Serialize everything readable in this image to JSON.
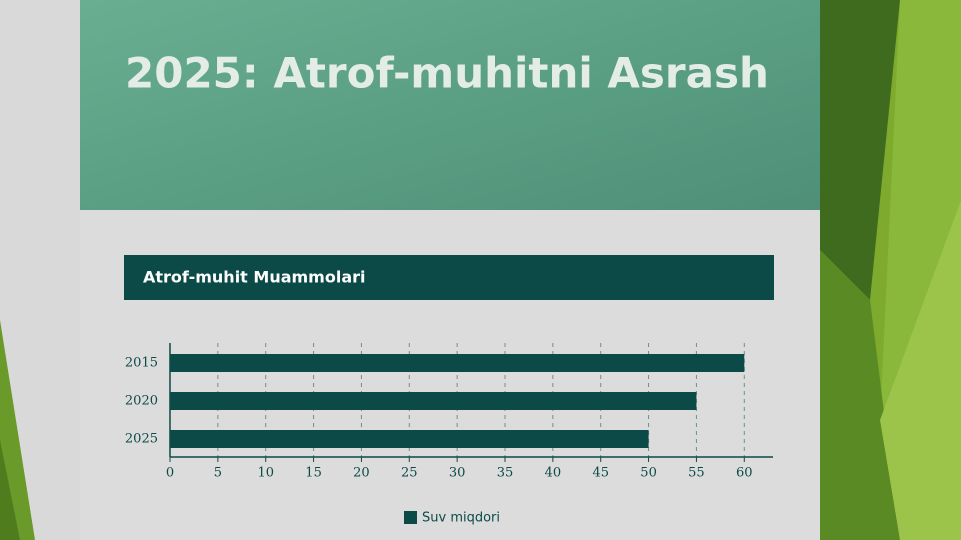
{
  "slide": {
    "title": "2025: Atrof-muhitni Asrash"
  },
  "chart_data": {
    "type": "bar",
    "orientation": "horizontal",
    "title": "Atrof-muhit Muammolari",
    "categories": [
      "2015",
      "2020",
      "2025"
    ],
    "series": [
      {
        "name": "Suv miqdori",
        "color": "#0b4a47",
        "values": [
          60,
          55,
          50
        ]
      }
    ],
    "xlim": [
      0,
      63
    ],
    "xticks": [
      0,
      5,
      10,
      15,
      20,
      25,
      30,
      35,
      40,
      45,
      50,
      55,
      60
    ],
    "grid": true,
    "legend": "bottom"
  }
}
